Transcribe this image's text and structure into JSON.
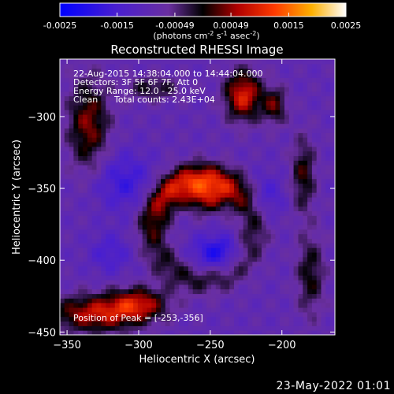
{
  "chart_data": {
    "type": "heatmap",
    "title": "Reconstructed RHESSI Image",
    "xlabel": "Heliocentric X (arcsec)",
    "ylabel": "Heliocentric Y (arcsec)",
    "xlim": [
      -355,
      -163
    ],
    "ylim": [
      -452,
      -260
    ],
    "xticks": [
      -350,
      -300,
      -250,
      -200
    ],
    "yticks": [
      -300,
      -350,
      -400,
      -450
    ],
    "colorbar": {
      "range": [
        -0.0025,
        0.0025
      ],
      "ticks": [
        "-0.0025",
        "-0.0015",
        "-0.00049",
        "0.00049",
        "0.0015",
        "0.0025"
      ],
      "tick_values": [
        -0.0025,
        -0.0015,
        -0.00049,
        0.00049,
        0.0015,
        0.0025
      ],
      "label_prefix": "(photons cm",
      "label_exp1": "-2",
      "label_mid": " s",
      "label_exp2": "-1",
      "label_mid2": " asec",
      "label_exp3": "-2",
      "label_suffix": ")"
    },
    "info": {
      "time": "22-Aug-2015 14:38:04.000 to 14:44:04.000",
      "detectors": "Detectors: 3F 5F 6F 7F, Att 0",
      "energy": "Energy Range: 12.0 - 25.0 keV",
      "method": "Clean",
      "counts": "Total counts: 2.43E+04"
    },
    "peak_label": "Position of Peak = [-253,-356]",
    "peak": [
      -253,
      -356
    ],
    "features": [
      {
        "name": "ring-arc",
        "cx": -255,
        "cy": -378,
        "r": 35,
        "amp": 0.00175
      },
      {
        "name": "peak",
        "x": -253,
        "y": -356,
        "amp": 0.0025
      },
      {
        "name": "top-right-source",
        "x": -227,
        "y": -285,
        "amp": 0.0018
      },
      {
        "name": "bottom-left-source",
        "x": -330,
        "y": -437,
        "amp": 0.0016
      },
      {
        "name": "ring-hole",
        "x": -245,
        "y": -395,
        "amp": -0.0012
      }
    ]
  },
  "footer_date": "23-May-2022 01:01"
}
